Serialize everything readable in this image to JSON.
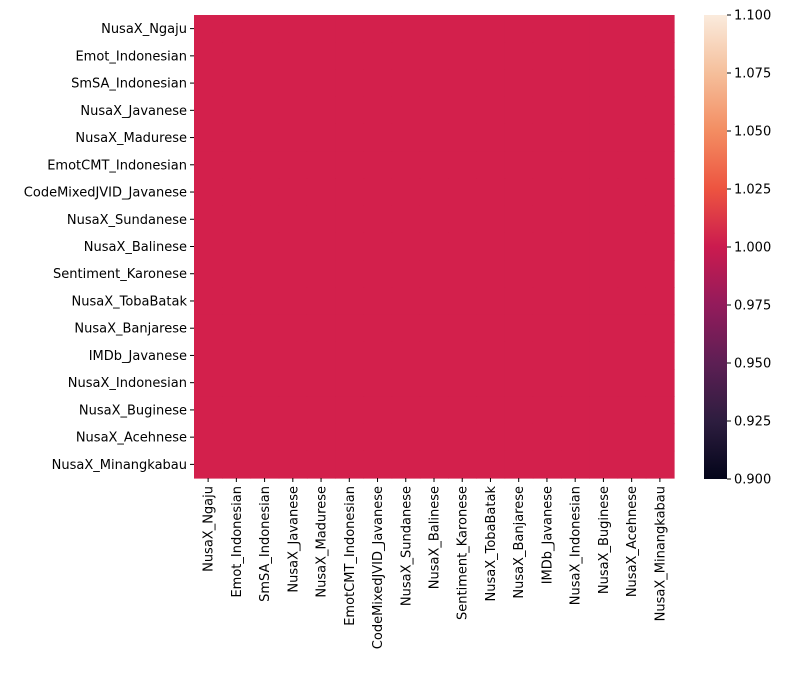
{
  "chart_data": {
    "type": "heatmap",
    "labels": [
      "NusaX_Ngaju",
      "Emot_Indonesian",
      "SmSA_Indonesian",
      "NusaX_Javanese",
      "NusaX_Madurese",
      "EmotCMT_Indonesian",
      "CodeMixedJVID_Javanese",
      "NusaX_Sundanese",
      "NusaX_Balinese",
      "Sentiment_Karonese",
      "NusaX_TobaBatak",
      "NusaX_Banjarese",
      "IMDb_Javanese",
      "NusaX_Indonesian",
      "NusaX_Buginese",
      "NusaX_Acehnese",
      "NusaX_Minangkabau"
    ],
    "value_all_cells": 1.0,
    "colorbar": {
      "range": [
        0.9,
        1.1
      ],
      "ticks": [
        "0.900",
        "0.925",
        "0.950",
        "0.975",
        "1.000",
        "1.025",
        "1.050",
        "1.075",
        "1.100"
      ],
      "colormap": "rocket",
      "stops": [
        "#03051a",
        "#2d1d3f",
        "#5d1f54",
        "#931b5b",
        "#cb1b4f",
        "#ed5440",
        "#f38d62",
        "#f5bf9b",
        "#faebdd"
      ]
    },
    "cell_color": "#d3204c",
    "title": "",
    "xlabel": "",
    "ylabel": ""
  }
}
